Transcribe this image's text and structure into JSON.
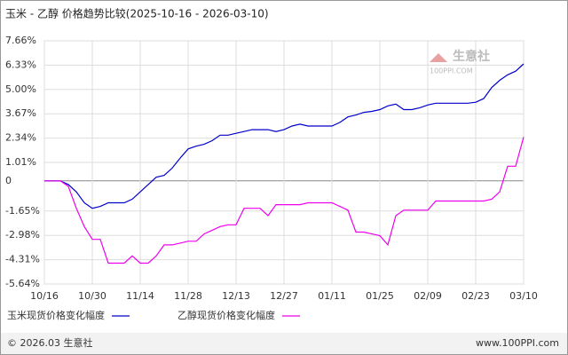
{
  "chart_data": {
    "type": "line",
    "title": "玉米 - 乙醇  价格趋势比较(2025-10-16 - 2026-03-10)",
    "categories": [
      "10/16",
      null,
      null,
      null,
      null,
      null,
      "10/30",
      null,
      null,
      null,
      null,
      null,
      "11/14",
      null,
      null,
      null,
      null,
      null,
      "11/28",
      null,
      null,
      null,
      null,
      null,
      "12/13",
      null,
      null,
      null,
      null,
      null,
      "12/27",
      null,
      null,
      null,
      null,
      null,
      "01/11",
      null,
      null,
      null,
      null,
      null,
      "01/25",
      null,
      null,
      null,
      null,
      null,
      "02/09",
      null,
      null,
      null,
      null,
      null,
      "02/23",
      null,
      null,
      null,
      null,
      null,
      "03/10"
    ],
    "series": [
      {
        "name": "玉米现货价格变化幅度",
        "color": "#0000cc",
        "values": [
          0,
          0,
          0,
          -0.2,
          -0.6,
          -1.2,
          -1.5,
          -1.4,
          -1.2,
          -1.2,
          -1.2,
          -1.0,
          -0.6,
          -0.2,
          0.2,
          0.3,
          0.7,
          1.25,
          1.75,
          1.9,
          2.0,
          2.2,
          2.5,
          2.5,
          2.6,
          2.7,
          2.8,
          2.8,
          2.8,
          2.7,
          2.8,
          3.0,
          3.1,
          3.0,
          3.0,
          3.0,
          3.0,
          3.2,
          3.5,
          3.6,
          3.75,
          3.8,
          3.9,
          4.1,
          4.2,
          3.9,
          3.9,
          4.0,
          4.15,
          4.25,
          4.25,
          4.25,
          4.25,
          4.25,
          4.3,
          4.5,
          5.1,
          5.5,
          5.8,
          6.0,
          6.4
        ]
      },
      {
        "name": "乙醇现货价格变化幅度",
        "color": "#ee00ee",
        "values": [
          0,
          0,
          0,
          -0.3,
          -1.5,
          -2.5,
          -3.2,
          -3.2,
          -4.5,
          -4.5,
          -4.5,
          -4.1,
          -4.5,
          -4.5,
          -4.1,
          -3.5,
          -3.5,
          -3.4,
          -3.3,
          -3.3,
          -2.9,
          -2.7,
          -2.5,
          -2.4,
          -2.4,
          -1.5,
          -1.5,
          -1.5,
          -1.9,
          -1.3,
          -1.3,
          -1.3,
          -1.3,
          -1.2,
          -1.2,
          -1.2,
          -1.2,
          -1.4,
          -1.6,
          -2.8,
          -2.8,
          -2.9,
          -3.0,
          -3.5,
          -1.9,
          -1.6,
          -1.6,
          -1.6,
          -1.6,
          -1.1,
          -1.1,
          -1.1,
          -1.1,
          -1.1,
          -1.1,
          -1.1,
          -1.0,
          -0.6,
          0.8,
          0.8,
          2.4
        ]
      }
    ],
    "ylim": [
      -5.64,
      7.66
    ],
    "yticks": [
      {
        "value": 7.66,
        "label": "7.66%"
      },
      {
        "value": 6.33,
        "label": "6.33%"
      },
      {
        "value": 5.0,
        "label": "5.00%"
      },
      {
        "value": 3.67,
        "label": "3.67%"
      },
      {
        "value": 2.34,
        "label": "2.34%"
      },
      {
        "value": 1.01,
        "label": "1.01%"
      },
      0,
      {
        "value": -1.65,
        "label": "-1.65%"
      },
      {
        "value": -2.98,
        "label": "-2.98%"
      },
      {
        "value": -4.31,
        "label": "-4.31%"
      },
      {
        "value": -5.64,
        "label": "-5.64%"
      }
    ],
    "grid": true
  },
  "watermark": {
    "name": "生意社",
    "site": "100PPI.COM"
  },
  "footer": {
    "copyright": "© 2026.03 生意社",
    "url": "www.100PPI.com"
  }
}
